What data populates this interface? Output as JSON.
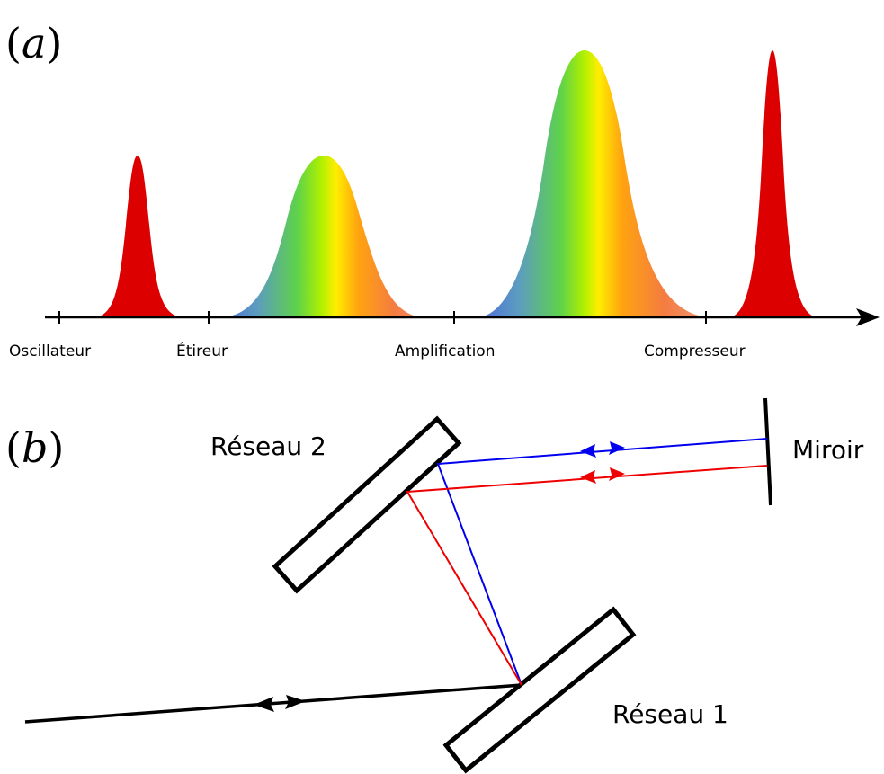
{
  "panel_a": {
    "label_open": "(",
    "label_letter": "a",
    "label_close": ")",
    "stages": [
      "Oscillateur",
      "Étireur",
      "Amplification",
      "Compresseur"
    ],
    "pulses": [
      {
        "stage": "Oscillateur",
        "relative_height": 0.65,
        "fill": "red"
      },
      {
        "stage": "Étireur",
        "relative_height": 0.65,
        "fill": "spectrum"
      },
      {
        "stage": "Amplification",
        "relative_height": 1.0,
        "fill": "spectrum"
      },
      {
        "stage": "Compresseur",
        "relative_height": 1.0,
        "fill": "red"
      }
    ],
    "colors": {
      "pulse_red": "#dd0000",
      "spectrum": [
        "#4c70d8",
        "#4dbd6a",
        "#a5ee00",
        "#ffe000",
        "#ff9a10",
        "#f07a4a"
      ]
    }
  },
  "panel_b": {
    "label_open": "(",
    "label_letter": "b",
    "label_close": ")",
    "grating_2": "Réseau 2",
    "grating_1": "Réseau 1",
    "mirror": "Miroir",
    "colors": {
      "blue_ray": "#0000ee",
      "red_ray": "#ee0000",
      "input_ray": "#000000"
    }
  }
}
